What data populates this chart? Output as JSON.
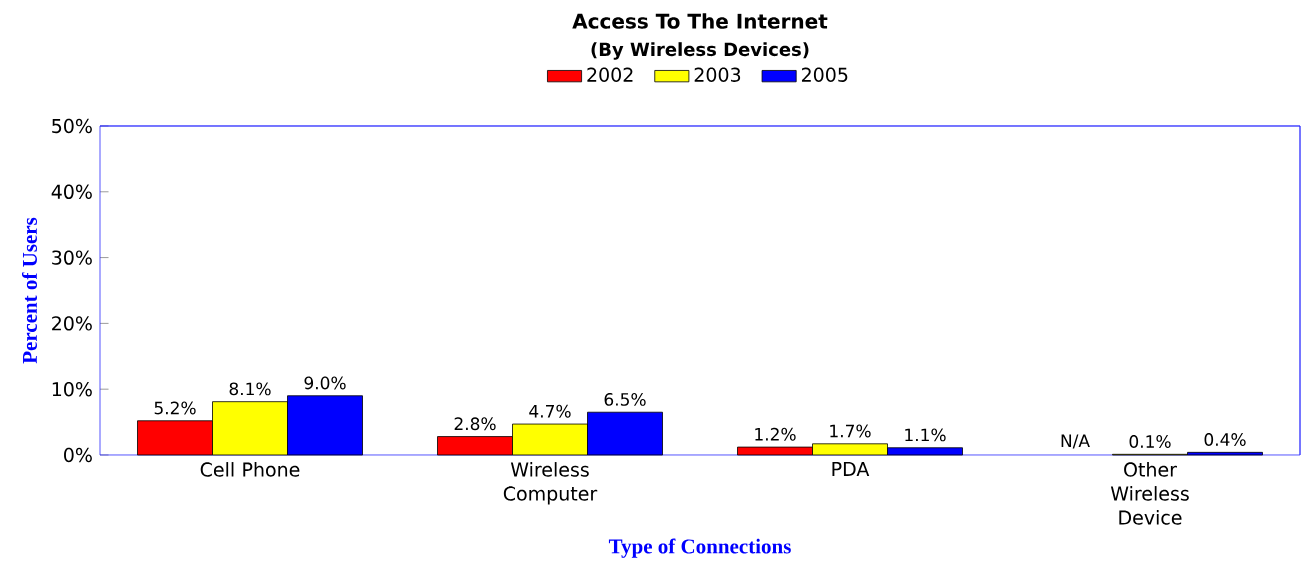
{
  "chart_data": {
    "type": "bar",
    "title": "Access To The Internet",
    "subtitle": "(By Wireless Devices)",
    "xlabel": "Type of Connections",
    "ylabel": "Percent of Users",
    "categories": [
      "Cell Phone",
      "Wireless Computer",
      "PDA",
      "Other Wireless Device"
    ],
    "series": [
      {
        "name": "2002",
        "color": "#ff0000",
        "values": [
          5.2,
          2.8,
          1.2,
          null
        ],
        "value_labels": [
          "5.2%",
          "2.8%",
          "1.2%",
          "N/A"
        ]
      },
      {
        "name": "2003",
        "color": "#ffff00",
        "values": [
          8.1,
          4.7,
          1.7,
          0.1
        ],
        "value_labels": [
          "8.1%",
          "4.7%",
          "1.7%",
          "0.1%"
        ]
      },
      {
        "name": "2005",
        "color": "#0000ff",
        "values": [
          9.0,
          6.5,
          1.1,
          0.4
        ],
        "value_labels": [
          "9.0%",
          "6.5%",
          "1.1%",
          "0.4%"
        ]
      }
    ],
    "ylim": [
      0,
      50
    ],
    "yticks": [
      {
        "value": 0,
        "label": "0%"
      },
      {
        "value": 10,
        "label": "10%"
      },
      {
        "value": 20,
        "label": "20%"
      },
      {
        "value": 30,
        "label": "30%"
      },
      {
        "value": 40,
        "label": "40%"
      },
      {
        "value": 50,
        "label": "50%"
      }
    ],
    "legend": "top"
  }
}
